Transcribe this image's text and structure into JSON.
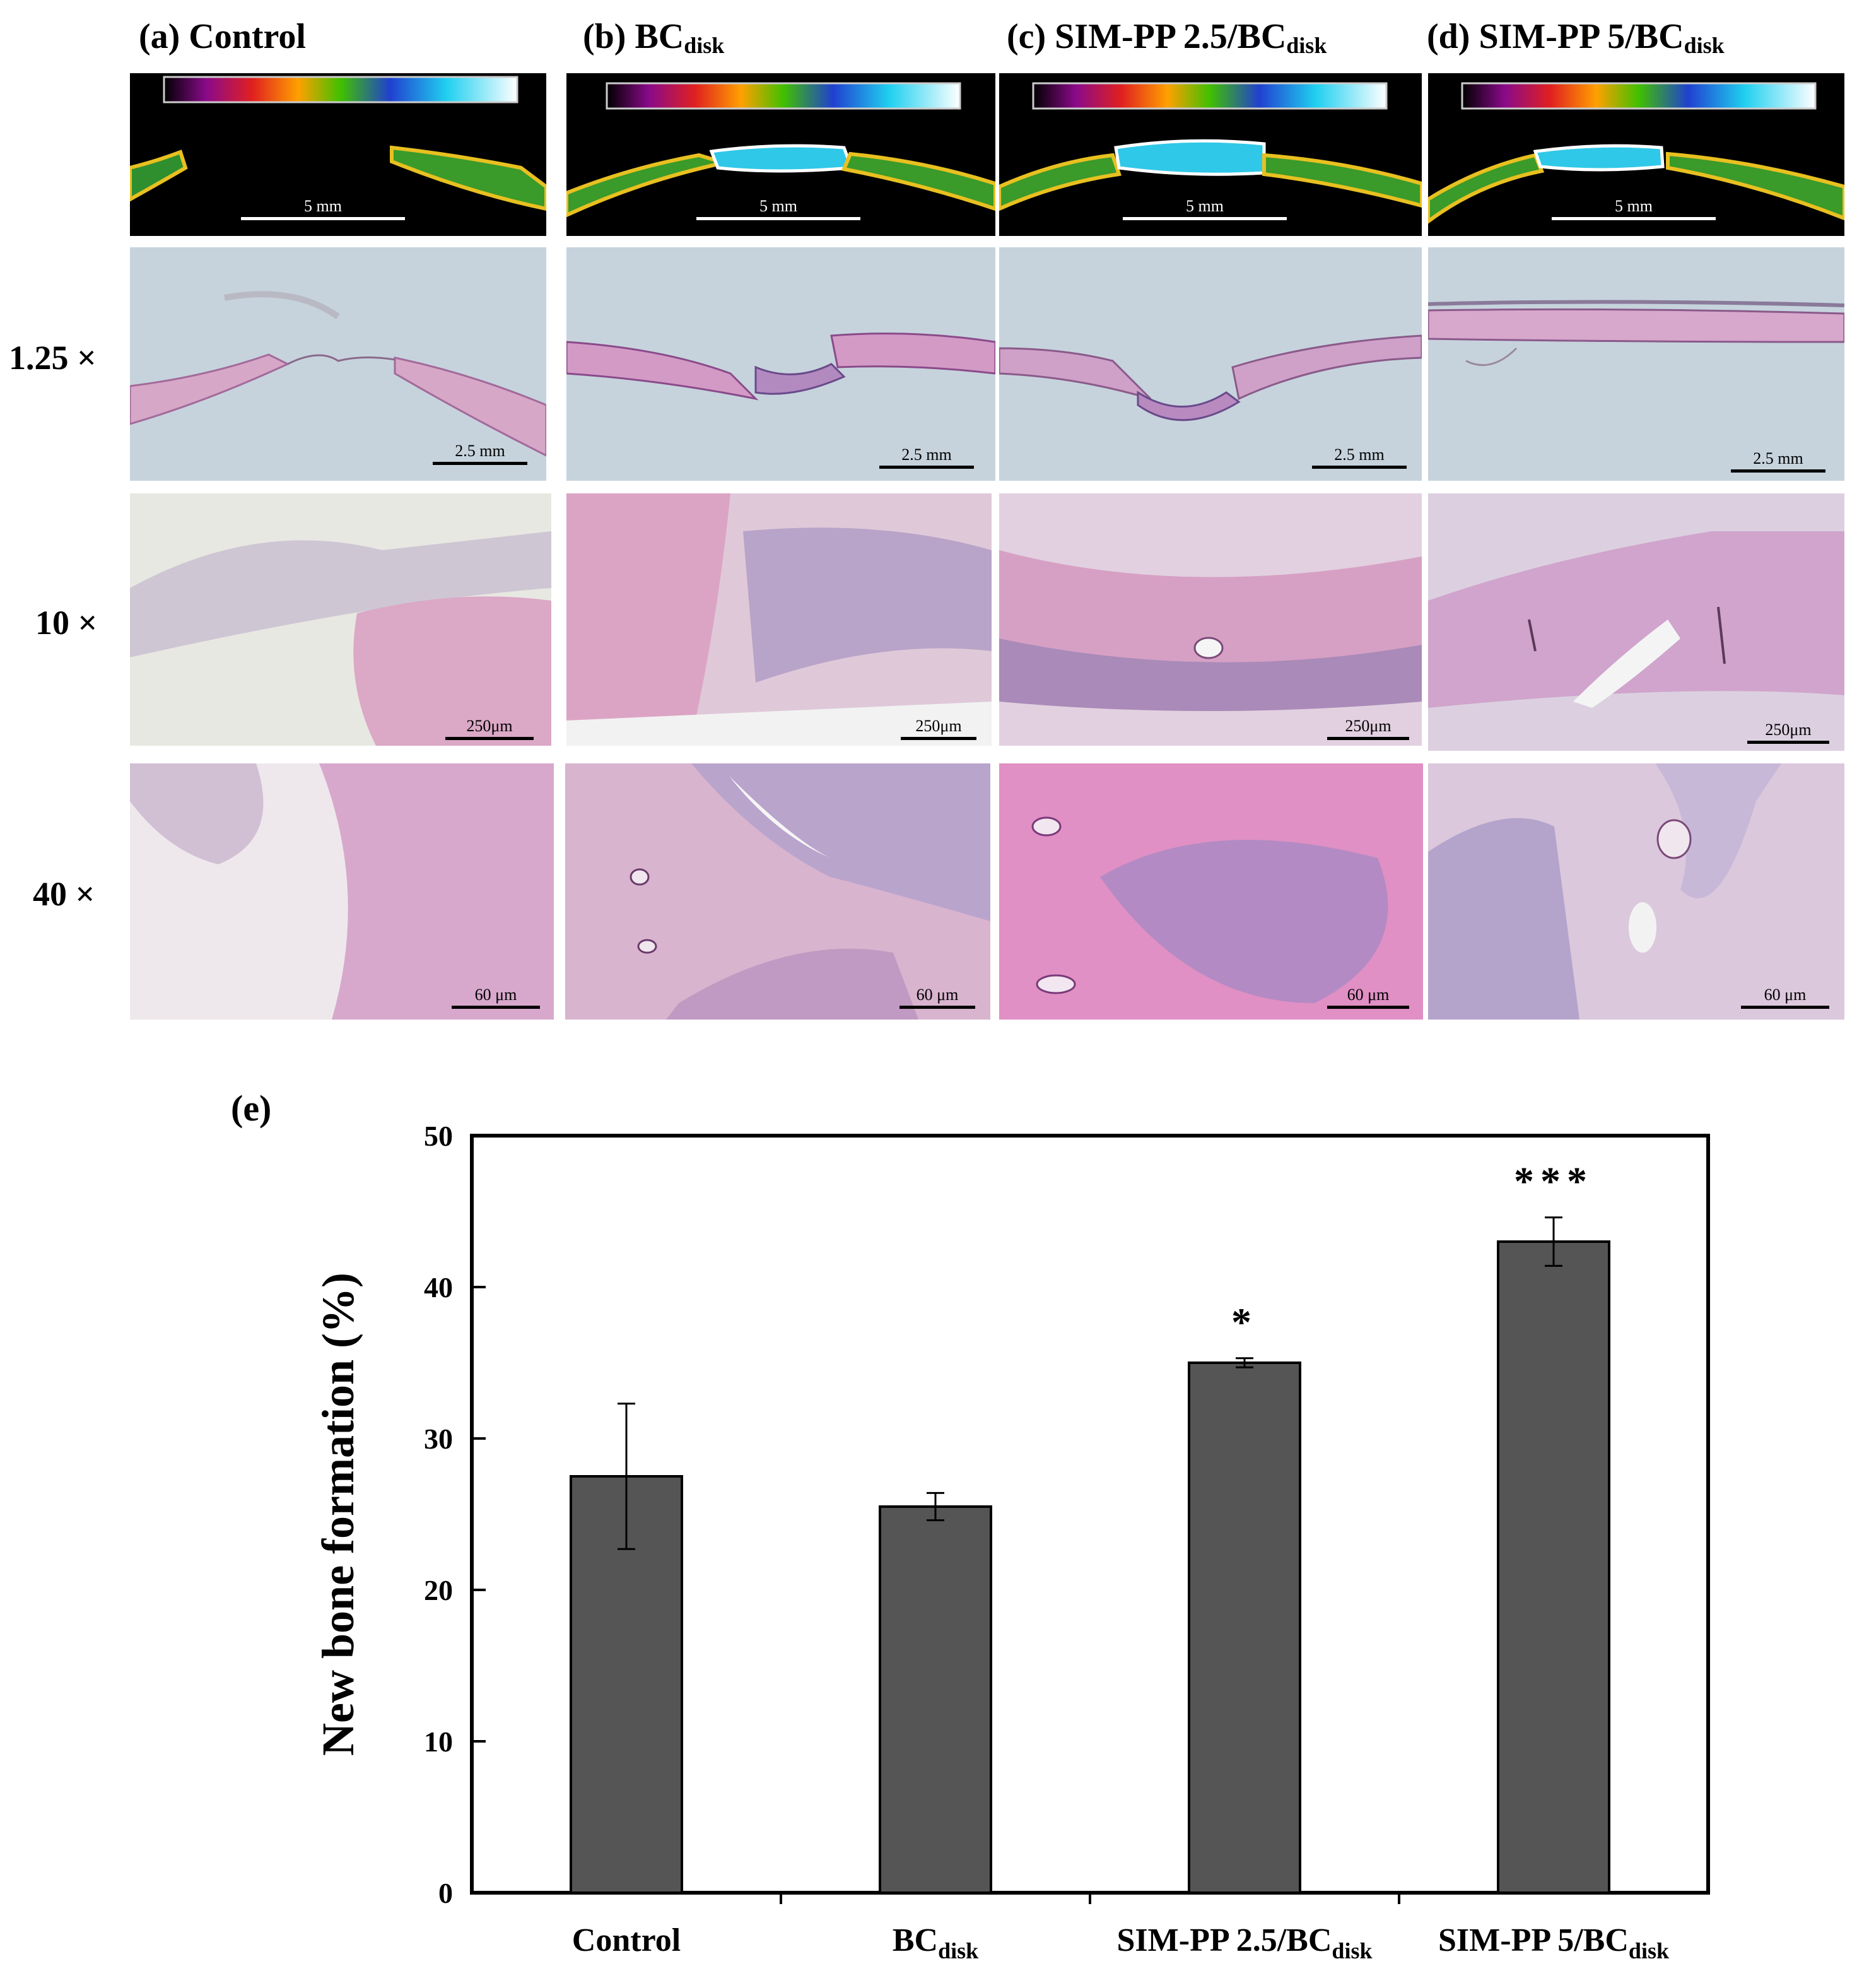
{
  "panels": {
    "columns": [
      {
        "label": "(a) Control",
        "sub": ""
      },
      {
        "label": "(b) BC",
        "sub": "disk"
      },
      {
        "label": "(c) SIM-PP 2.5/BC",
        "sub": "disk"
      },
      {
        "label": "(d) SIM-PP 5/BC",
        "sub": "disk"
      }
    ],
    "rows": [
      "1.25 ×",
      "10 ×",
      "40 ×"
    ],
    "scale_bars": {
      "ct": [
        "5 mm",
        "5 mm",
        "5 mm",
        "5 mm"
      ],
      "r1": [
        "2.5 mm",
        "2.5 mm",
        "2.5 mm",
        "2.5 mm"
      ],
      "r2": [
        "250μm",
        "250μm",
        "250μm",
        "250μm"
      ],
      "r3": [
        "60 μm",
        "60 μm",
        "60 μm",
        "60 μm"
      ]
    }
  },
  "chart_label": "(e)",
  "chart_data": {
    "type": "bar",
    "categories": [
      "Control",
      "BC",
      "SIM-PP 2.5/BC",
      "SIM-PP 5/BC"
    ],
    "category_subscripts": [
      "",
      "disk",
      "disk",
      "disk"
    ],
    "values": [
      27.5,
      25.5,
      35.0,
      43.0
    ],
    "errors": [
      4.8,
      0.9,
      0.3,
      1.6
    ],
    "significance": [
      "",
      "",
      "*",
      "***"
    ],
    "ylabel": "New bone formation (%)",
    "ylim": [
      0,
      50
    ],
    "yticks": [
      0,
      10,
      20,
      30,
      40,
      50
    ],
    "grid": false,
    "bar_color": "#555555"
  }
}
